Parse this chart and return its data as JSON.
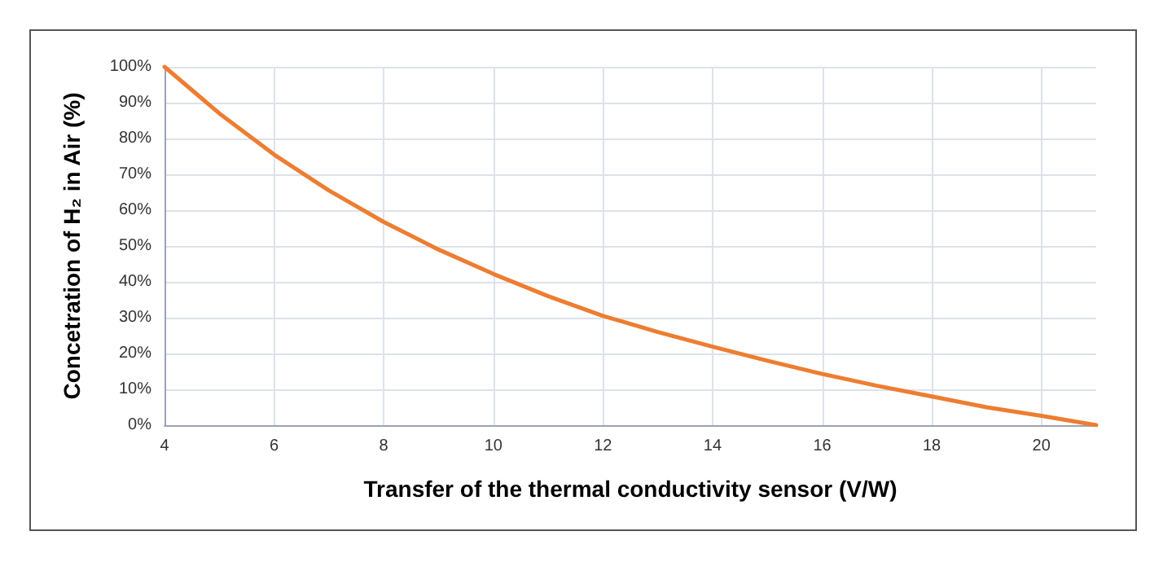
{
  "chart_data": {
    "type": "line",
    "xlabel": "Transfer of the thermal conductivity sensor (V/W)",
    "ylabel": "Concetration of H₂ in Air (%)",
    "x": [
      4,
      5,
      6,
      7,
      8,
      9,
      10,
      11,
      12,
      13,
      14,
      15,
      16,
      17,
      18,
      19,
      20,
      21
    ],
    "series": [
      {
        "color": "#ed7d31",
        "values": [
          100,
          87,
          75.5,
          65.5,
          56.7,
          49,
          42.2,
          36,
          30.5,
          26,
          21.9,
          18,
          14.3,
          11,
          8,
          5,
          2.6,
          0
        ]
      }
    ],
    "xlim": [
      4,
      21
    ],
    "xticks": [
      4,
      6,
      8,
      10,
      12,
      14,
      16,
      18,
      20
    ],
    "ylim": [
      0,
      100
    ],
    "yticks": [
      {
        "value": 0,
        "label": "0%"
      },
      {
        "value": 10,
        "label": "10%"
      },
      {
        "value": 20,
        "label": "20%"
      },
      {
        "value": 30,
        "label": "30%"
      },
      {
        "value": 40,
        "label": "40%"
      },
      {
        "value": 50,
        "label": "50%"
      },
      {
        "value": 60,
        "label": "60%"
      },
      {
        "value": 70,
        "label": "70%"
      },
      {
        "value": 80,
        "label": "80%"
      },
      {
        "value": 90,
        "label": "90%"
      },
      {
        "value": 100,
        "label": "100%"
      }
    ],
    "grid": true,
    "marker": "none",
    "line_style": "solid"
  }
}
